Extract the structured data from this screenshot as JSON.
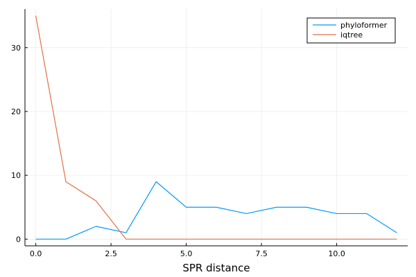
{
  "chart_data": {
    "type": "line",
    "xlabel": "SPR distance",
    "ylabel": "",
    "title": "",
    "xlim": [
      -0.36,
      12.36
    ],
    "ylim": [
      -1.05,
      36.05
    ],
    "xticks": [
      0,
      2.5,
      5,
      7.5,
      10
    ],
    "xtick_labels": [
      "0.0",
      "2.5",
      "5.0",
      "7.5",
      "10.0"
    ],
    "yticks": [
      0,
      10,
      20,
      30
    ],
    "ytick_labels": [
      "0",
      "10",
      "20",
      "30"
    ],
    "grid": true,
    "legend_position": "top-right",
    "x": [
      0,
      1,
      2,
      3,
      4,
      5,
      6,
      7,
      8,
      9,
      10,
      11,
      12
    ],
    "series": [
      {
        "name": "phyloformer",
        "color": "#009AFA",
        "values": [
          0,
          0,
          2,
          1,
          9,
          5,
          5,
          4,
          5,
          5,
          4,
          4,
          1
        ]
      },
      {
        "name": "iqtree",
        "color": "#E36F47",
        "values": [
          35,
          9,
          6,
          0,
          0,
          0,
          0,
          0,
          0,
          0,
          0,
          0,
          0
        ]
      }
    ]
  }
}
